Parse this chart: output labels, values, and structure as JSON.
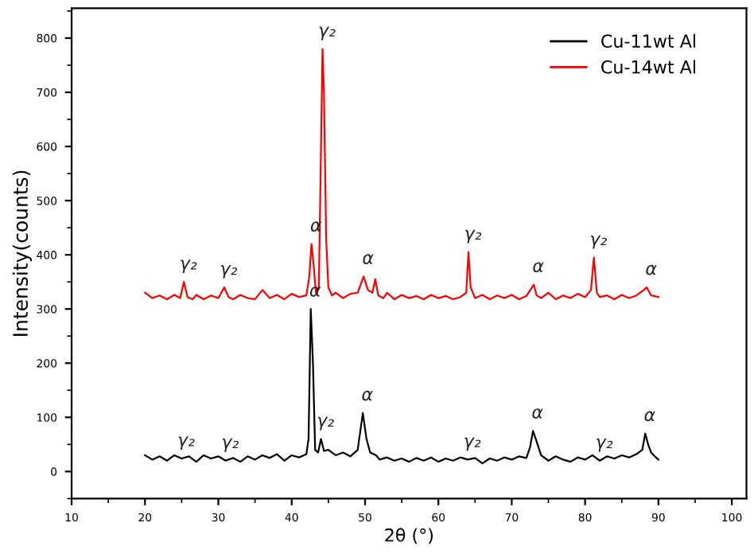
{
  "chart_data": {
    "type": "line",
    "xlabel": "2θ (°)",
    "ylabel": "Intensity(counts)",
    "xlim": [
      10,
      102
    ],
    "ylim": [
      -50,
      855
    ],
    "xticks": [
      10,
      20,
      30,
      40,
      50,
      60,
      70,
      80,
      90,
      100
    ],
    "yticks": [
      0,
      100,
      200,
      300,
      400,
      500,
      600,
      700,
      800
    ],
    "legend": "top right",
    "grid": false,
    "series": [
      {
        "name": "Cu-11wt Al",
        "color": "#000000",
        "x": [
          20,
          21,
          22,
          23,
          24,
          25,
          26,
          27,
          28,
          29,
          30,
          31,
          32,
          33,
          34,
          35,
          36,
          37,
          38,
          39,
          40,
          41,
          42,
          42.3,
          42.6,
          42.9,
          43.2,
          43.6,
          44,
          44.4,
          45,
          46,
          47,
          48,
          49,
          49.7,
          50.2,
          50.7,
          51.5,
          52,
          53,
          54,
          55,
          56,
          57,
          58,
          59,
          60,
          61,
          62,
          63,
          64,
          65,
          66,
          67,
          68,
          69,
          70,
          71,
          72,
          72.5,
          72.9,
          73.4,
          74,
          75,
          76,
          77,
          78,
          79,
          80,
          81,
          82,
          83,
          84,
          85,
          86,
          87,
          87.8,
          88.2,
          88.6,
          89,
          89.5,
          90
        ],
        "values": [
          30,
          22,
          28,
          20,
          30,
          24,
          28,
          18,
          30,
          24,
          28,
          20,
          25,
          18,
          28,
          22,
          30,
          25,
          32,
          20,
          30,
          26,
          32,
          60,
          300,
          200,
          40,
          35,
          60,
          38,
          40,
          30,
          35,
          28,
          40,
          108,
          60,
          35,
          30,
          22,
          26,
          20,
          24,
          18,
          25,
          20,
          26,
          18,
          24,
          20,
          26,
          22,
          25,
          15,
          24,
          20,
          26,
          22,
          28,
          25,
          45,
          75,
          55,
          30,
          20,
          28,
          22,
          18,
          26,
          22,
          30,
          20,
          28,
          24,
          30,
          26,
          32,
          40,
          70,
          50,
          35,
          28,
          22
        ]
      },
      {
        "name": "Cu-14wt Al",
        "color": "#ff0000",
        "x": [
          20,
          21,
          22,
          23,
          24,
          24.8,
          25.3,
          25.8,
          26.5,
          27,
          28,
          29,
          30,
          30.8,
          31.4,
          32,
          33,
          34,
          35,
          36,
          37,
          38,
          39,
          40,
          41,
          42,
          42.4,
          42.7,
          43.0,
          43.3,
          43.7,
          44.0,
          44.2,
          44.4,
          44.7,
          45.0,
          45.5,
          46,
          47,
          48,
          49,
          49.8,
          50.4,
          51,
          51.4,
          51.8,
          52.5,
          53,
          54,
          55,
          56,
          57,
          58,
          59,
          60,
          61,
          62,
          63,
          63.8,
          64.1,
          64.4,
          65,
          66,
          67,
          68,
          69,
          70,
          71,
          72,
          73,
          73.4,
          74,
          75,
          76,
          77,
          78,
          79,
          80,
          80.8,
          81.2,
          81.6,
          82,
          83,
          84,
          85,
          86,
          87,
          88,
          88.4,
          89,
          90
        ],
        "values": [
          330,
          320,
          325,
          318,
          326,
          320,
          350,
          322,
          318,
          326,
          318,
          325,
          320,
          340,
          322,
          318,
          326,
          320,
          318,
          335,
          320,
          326,
          318,
          328,
          322,
          325,
          360,
          420,
          380,
          330,
          340,
          600,
          780,
          700,
          430,
          340,
          325,
          330,
          320,
          328,
          330,
          360,
          335,
          330,
          355,
          325,
          320,
          330,
          318,
          326,
          320,
          324,
          318,
          326,
          320,
          324,
          318,
          322,
          330,
          405,
          340,
          320,
          326,
          318,
          325,
          320,
          326,
          318,
          324,
          345,
          325,
          320,
          330,
          318,
          325,
          320,
          328,
          322,
          335,
          395,
          330,
          322,
          325,
          318,
          326,
          320,
          325,
          335,
          340,
          325,
          322
        ]
      }
    ],
    "annotations": [
      {
        "text": "γ₂",
        "x": 25.3,
        "y": 350
      },
      {
        "text": "γ₂",
        "x": 30.8,
        "y": 340
      },
      {
        "text": "α",
        "x": 42.7,
        "y": 420
      },
      {
        "text": "γ₂",
        "x": 44.2,
        "y": 780
      },
      {
        "text": "α",
        "x": 49.8,
        "y": 360
      },
      {
        "text": "γ₂",
        "x": 64.1,
        "y": 405
      },
      {
        "text": "α",
        "x": 73,
        "y": 345
      },
      {
        "text": "γ₂",
        "x": 81.2,
        "y": 395
      },
      {
        "text": "α",
        "x": 88.4,
        "y": 340
      },
      {
        "text": "γ₂",
        "x": 25,
        "y": 24
      },
      {
        "text": "γ₂",
        "x": 31,
        "y": 20
      },
      {
        "text": "α",
        "x": 42.6,
        "y": 300
      },
      {
        "text": "γ₂",
        "x": 44,
        "y": 60
      },
      {
        "text": "α",
        "x": 49.7,
        "y": 108
      },
      {
        "text": "γ₂",
        "x": 64,
        "y": 22
      },
      {
        "text": "α",
        "x": 72.9,
        "y": 75
      },
      {
        "text": "γ₂",
        "x": 82,
        "y": 20
      },
      {
        "text": "α",
        "x": 88.2,
        "y": 70
      }
    ]
  }
}
